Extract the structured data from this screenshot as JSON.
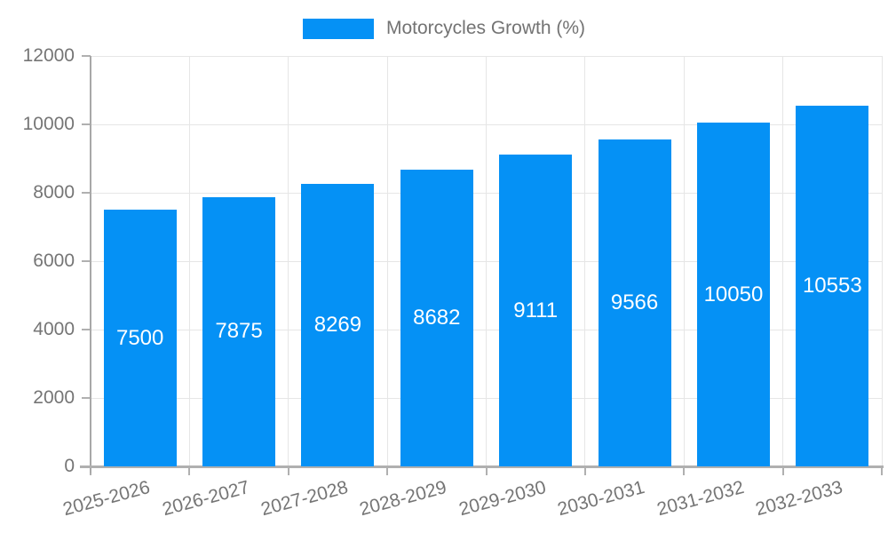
{
  "legend": {
    "label": "Motorcycles Growth (%)"
  },
  "chart_data": {
    "type": "bar",
    "title": "",
    "xlabel": "",
    "ylabel": "",
    "categories": [
      "2025-2026",
      "2026-2027",
      "2027-2028",
      "2028-2029",
      "2029-2030",
      "2030-2031",
      "2031-2032",
      "2032-2033"
    ],
    "series": [
      {
        "name": "Motorcycles Growth (%)",
        "values": [
          7500,
          7875,
          8269,
          8682,
          9111,
          9566,
          10050,
          10553
        ]
      }
    ],
    "bar_labels": [
      "7500",
      "7875",
      "8269",
      "8682",
      "9111",
      "9566",
      "10050",
      "10553"
    ],
    "ylim": [
      0,
      12000
    ],
    "yticks": [
      0,
      2000,
      4000,
      6000,
      8000,
      10000,
      12000
    ],
    "grid": true,
    "legend_position": "top",
    "bar_color": "#0591f5",
    "bar_label_color": "#ffffff",
    "tick_label_color": "#757575",
    "grid_color": "#e6e6e6",
    "axis_color": "#b0b0b0"
  }
}
